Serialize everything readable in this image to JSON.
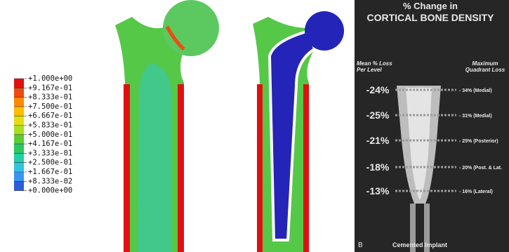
{
  "legend": {
    "labels": [
      "+1.000e+00",
      "+9.167e-01",
      "+8.333e-01",
      "+7.500e-01",
      "+6.667e-01",
      "+5.833e-01",
      "+5.000e-01",
      "+4.167e-01",
      "+3.333e-01",
      "+2.500e-01",
      "+1.667e-01",
      "+8.333e-02",
      "+0.000e+00"
    ],
    "colors": [
      "#e01010",
      "#f04a10",
      "#ff8a00",
      "#ffbe00",
      "#e4de10",
      "#a8e020",
      "#5ccc38",
      "#2cc860",
      "#22d0a8",
      "#30c4e0",
      "#3896f0",
      "#2a5ce0",
      "#2424b8"
    ]
  },
  "panel": {
    "title_line1": "% Change in",
    "title_line2": "CORTICAL BONE DENSITY",
    "left_header": "Mean % Loss Per Level",
    "right_header": "Maximum Quadrant Loss",
    "rows": [
      [
        "-24%",
        "- 34% (Medial)"
      ],
      [
        "-25%",
        "- 31% (Medial)"
      ],
      [
        "-21%",
        "- 25% (Posterior)"
      ],
      [
        "-18%",
        "- 20% (Post. & Lat."
      ],
      [
        "-13%",
        "- 16% (Lateral)"
      ]
    ],
    "panel_letter": "B",
    "caption": "Cemented Implant"
  }
}
